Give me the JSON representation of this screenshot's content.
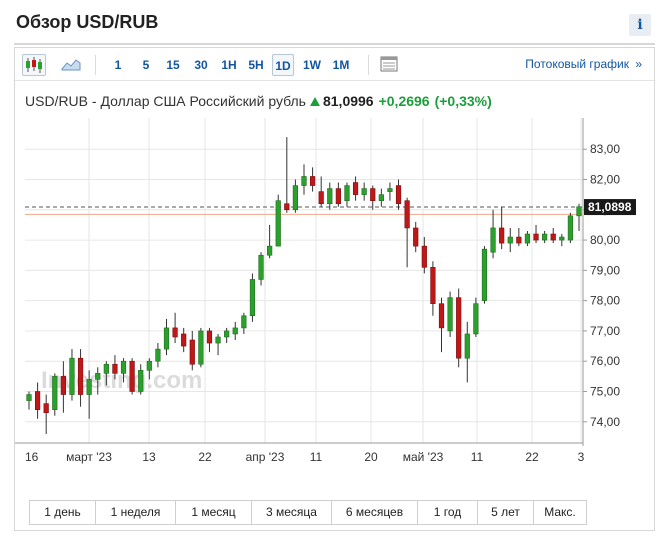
{
  "header": {
    "title": "Обзор USD/RUB",
    "info_label": "i"
  },
  "toolbar": {
    "timeframes": [
      "1",
      "5",
      "15",
      "30",
      "1H",
      "5H",
      "1D",
      "1W",
      "1M"
    ],
    "active_timeframe": "1D",
    "stream_label": "Потоковый график",
    "stream_arrow": "»"
  },
  "quote": {
    "instrument": "USD/RUB - Доллар США Российский рубль",
    "price": "81,0996",
    "change": "+0,2696",
    "change_pct": "(+0,33%)",
    "direction": "up"
  },
  "chart_data": {
    "type": "candlestick",
    "y_ticks": [
      "83,00",
      "82,00",
      "81,00",
      "80,00",
      "79,00",
      "78,00",
      "77,00",
      "76,00",
      "75,00",
      "74,00"
    ],
    "y_tick_values": [
      83,
      82,
      81,
      80,
      79,
      78,
      77,
      76,
      75,
      74
    ],
    "ylim": [
      73.3,
      83.7
    ],
    "x_labels": [
      "16",
      "март '23",
      "13",
      "22",
      "апр '23",
      "11",
      "20",
      "май '23",
      "11",
      "22",
      "3"
    ],
    "last_price_label": "81,0898",
    "last_price": 81.0898,
    "reference_line": 80.85,
    "watermark": "Investing.com",
    "colors": {
      "up": "#2ca02c",
      "down": "#c01818",
      "grid": "#e6e6e6",
      "reference": "#f0a88a",
      "last_dashed": "#555555"
    },
    "candles": [
      {
        "o": 74.7,
        "h": 75.0,
        "l": 74.4,
        "c": 74.9
      },
      {
        "o": 75.0,
        "h": 75.3,
        "l": 74.1,
        "c": 74.4
      },
      {
        "o": 74.6,
        "h": 74.9,
        "l": 73.6,
        "c": 74.3
      },
      {
        "o": 74.4,
        "h": 75.6,
        "l": 74.2,
        "c": 75.5
      },
      {
        "o": 75.5,
        "h": 76.0,
        "l": 74.3,
        "c": 74.9
      },
      {
        "o": 74.9,
        "h": 76.4,
        "l": 74.7,
        "c": 76.1
      },
      {
        "o": 76.1,
        "h": 76.4,
        "l": 74.5,
        "c": 74.9
      },
      {
        "o": 74.9,
        "h": 75.7,
        "l": 74.1,
        "c": 75.4
      },
      {
        "o": 75.4,
        "h": 75.8,
        "l": 74.9,
        "c": 75.6
      },
      {
        "o": 75.6,
        "h": 76.0,
        "l": 75.2,
        "c": 75.9
      },
      {
        "o": 75.9,
        "h": 76.2,
        "l": 75.4,
        "c": 75.6
      },
      {
        "o": 75.6,
        "h": 76.1,
        "l": 75.3,
        "c": 76.0
      },
      {
        "o": 76.0,
        "h": 76.1,
        "l": 74.9,
        "c": 75.0
      },
      {
        "o": 75.0,
        "h": 75.9,
        "l": 74.9,
        "c": 75.7
      },
      {
        "o": 75.7,
        "h": 76.1,
        "l": 75.4,
        "c": 76.0
      },
      {
        "o": 76.0,
        "h": 76.6,
        "l": 75.8,
        "c": 76.4
      },
      {
        "o": 76.4,
        "h": 77.4,
        "l": 76.2,
        "c": 77.1
      },
      {
        "o": 77.1,
        "h": 77.6,
        "l": 76.6,
        "c": 76.8
      },
      {
        "o": 76.9,
        "h": 77.1,
        "l": 76.3,
        "c": 76.5
      },
      {
        "o": 76.7,
        "h": 77.0,
        "l": 75.7,
        "c": 75.9
      },
      {
        "o": 75.9,
        "h": 77.1,
        "l": 75.8,
        "c": 77.0
      },
      {
        "o": 77.0,
        "h": 77.1,
        "l": 76.3,
        "c": 76.6
      },
      {
        "o": 76.6,
        "h": 76.9,
        "l": 76.2,
        "c": 76.8
      },
      {
        "o": 76.8,
        "h": 77.1,
        "l": 76.6,
        "c": 77.0
      },
      {
        "o": 76.9,
        "h": 77.3,
        "l": 76.7,
        "c": 77.1
      },
      {
        "o": 77.1,
        "h": 77.6,
        "l": 76.9,
        "c": 77.5
      },
      {
        "o": 77.5,
        "h": 78.9,
        "l": 77.3,
        "c": 78.7
      },
      {
        "o": 78.7,
        "h": 79.6,
        "l": 78.5,
        "c": 79.5
      },
      {
        "o": 79.5,
        "h": 80.5,
        "l": 79.4,
        "c": 79.8
      },
      {
        "o": 79.8,
        "h": 81.5,
        "l": 79.8,
        "c": 81.3
      },
      {
        "o": 81.2,
        "h": 83.4,
        "l": 80.9,
        "c": 81.0
      },
      {
        "o": 81.0,
        "h": 82.0,
        "l": 80.9,
        "c": 81.8
      },
      {
        "o": 81.8,
        "h": 82.5,
        "l": 81.5,
        "c": 82.1
      },
      {
        "o": 82.1,
        "h": 82.4,
        "l": 81.6,
        "c": 81.8
      },
      {
        "o": 81.6,
        "h": 82.1,
        "l": 81.1,
        "c": 81.2
      },
      {
        "o": 81.2,
        "h": 81.9,
        "l": 81.0,
        "c": 81.7
      },
      {
        "o": 81.7,
        "h": 81.9,
        "l": 81.1,
        "c": 81.2
      },
      {
        "o": 81.3,
        "h": 81.9,
        "l": 81.1,
        "c": 81.8
      },
      {
        "o": 81.9,
        "h": 82.1,
        "l": 81.3,
        "c": 81.5
      },
      {
        "o": 81.5,
        "h": 81.9,
        "l": 81.3,
        "c": 81.7
      },
      {
        "o": 81.7,
        "h": 81.8,
        "l": 81.0,
        "c": 81.3
      },
      {
        "o": 81.3,
        "h": 81.7,
        "l": 81.1,
        "c": 81.5
      },
      {
        "o": 81.6,
        "h": 81.9,
        "l": 81.3,
        "c": 81.7
      },
      {
        "o": 81.8,
        "h": 82.0,
        "l": 81.0,
        "c": 81.2
      },
      {
        "o": 81.3,
        "h": 81.4,
        "l": 79.1,
        "c": 80.4
      },
      {
        "o": 80.4,
        "h": 80.6,
        "l": 79.6,
        "c": 79.8
      },
      {
        "o": 79.8,
        "h": 80.1,
        "l": 78.9,
        "c": 79.1
      },
      {
        "o": 79.1,
        "h": 79.3,
        "l": 77.5,
        "c": 77.9
      },
      {
        "o": 77.9,
        "h": 78.1,
        "l": 76.3,
        "c": 77.1
      },
      {
        "o": 77.0,
        "h": 78.3,
        "l": 76.8,
        "c": 78.1
      },
      {
        "o": 78.1,
        "h": 78.4,
        "l": 75.8,
        "c": 76.1
      },
      {
        "o": 76.1,
        "h": 77.3,
        "l": 75.3,
        "c": 76.9
      },
      {
        "o": 76.9,
        "h": 78.1,
        "l": 76.8,
        "c": 77.9
      },
      {
        "o": 78.0,
        "h": 79.8,
        "l": 77.9,
        "c": 79.7
      },
      {
        "o": 79.6,
        "h": 81.0,
        "l": 79.4,
        "c": 80.4
      },
      {
        "o": 80.4,
        "h": 81.1,
        "l": 79.7,
        "c": 79.9
      },
      {
        "o": 79.9,
        "h": 80.4,
        "l": 79.6,
        "c": 80.1
      },
      {
        "o": 80.1,
        "h": 80.4,
        "l": 79.8,
        "c": 79.9
      },
      {
        "o": 79.9,
        "h": 80.3,
        "l": 79.8,
        "c": 80.2
      },
      {
        "o": 80.2,
        "h": 80.5,
        "l": 79.9,
        "c": 80.0
      },
      {
        "o": 80.0,
        "h": 80.3,
        "l": 79.9,
        "c": 80.2
      },
      {
        "o": 80.2,
        "h": 80.4,
        "l": 79.9,
        "c": 80.0
      },
      {
        "o": 80.0,
        "h": 80.2,
        "l": 79.8,
        "c": 80.1
      },
      {
        "o": 80.0,
        "h": 80.9,
        "l": 79.9,
        "c": 80.8
      },
      {
        "o": 80.8,
        "h": 81.2,
        "l": 80.3,
        "c": 81.1
      }
    ]
  },
  "ranges": [
    "1 день",
    "1 неделя",
    "1 месяц",
    "3 месяца",
    "6 месяцев",
    "1 год",
    "5 лет",
    "Макс."
  ]
}
